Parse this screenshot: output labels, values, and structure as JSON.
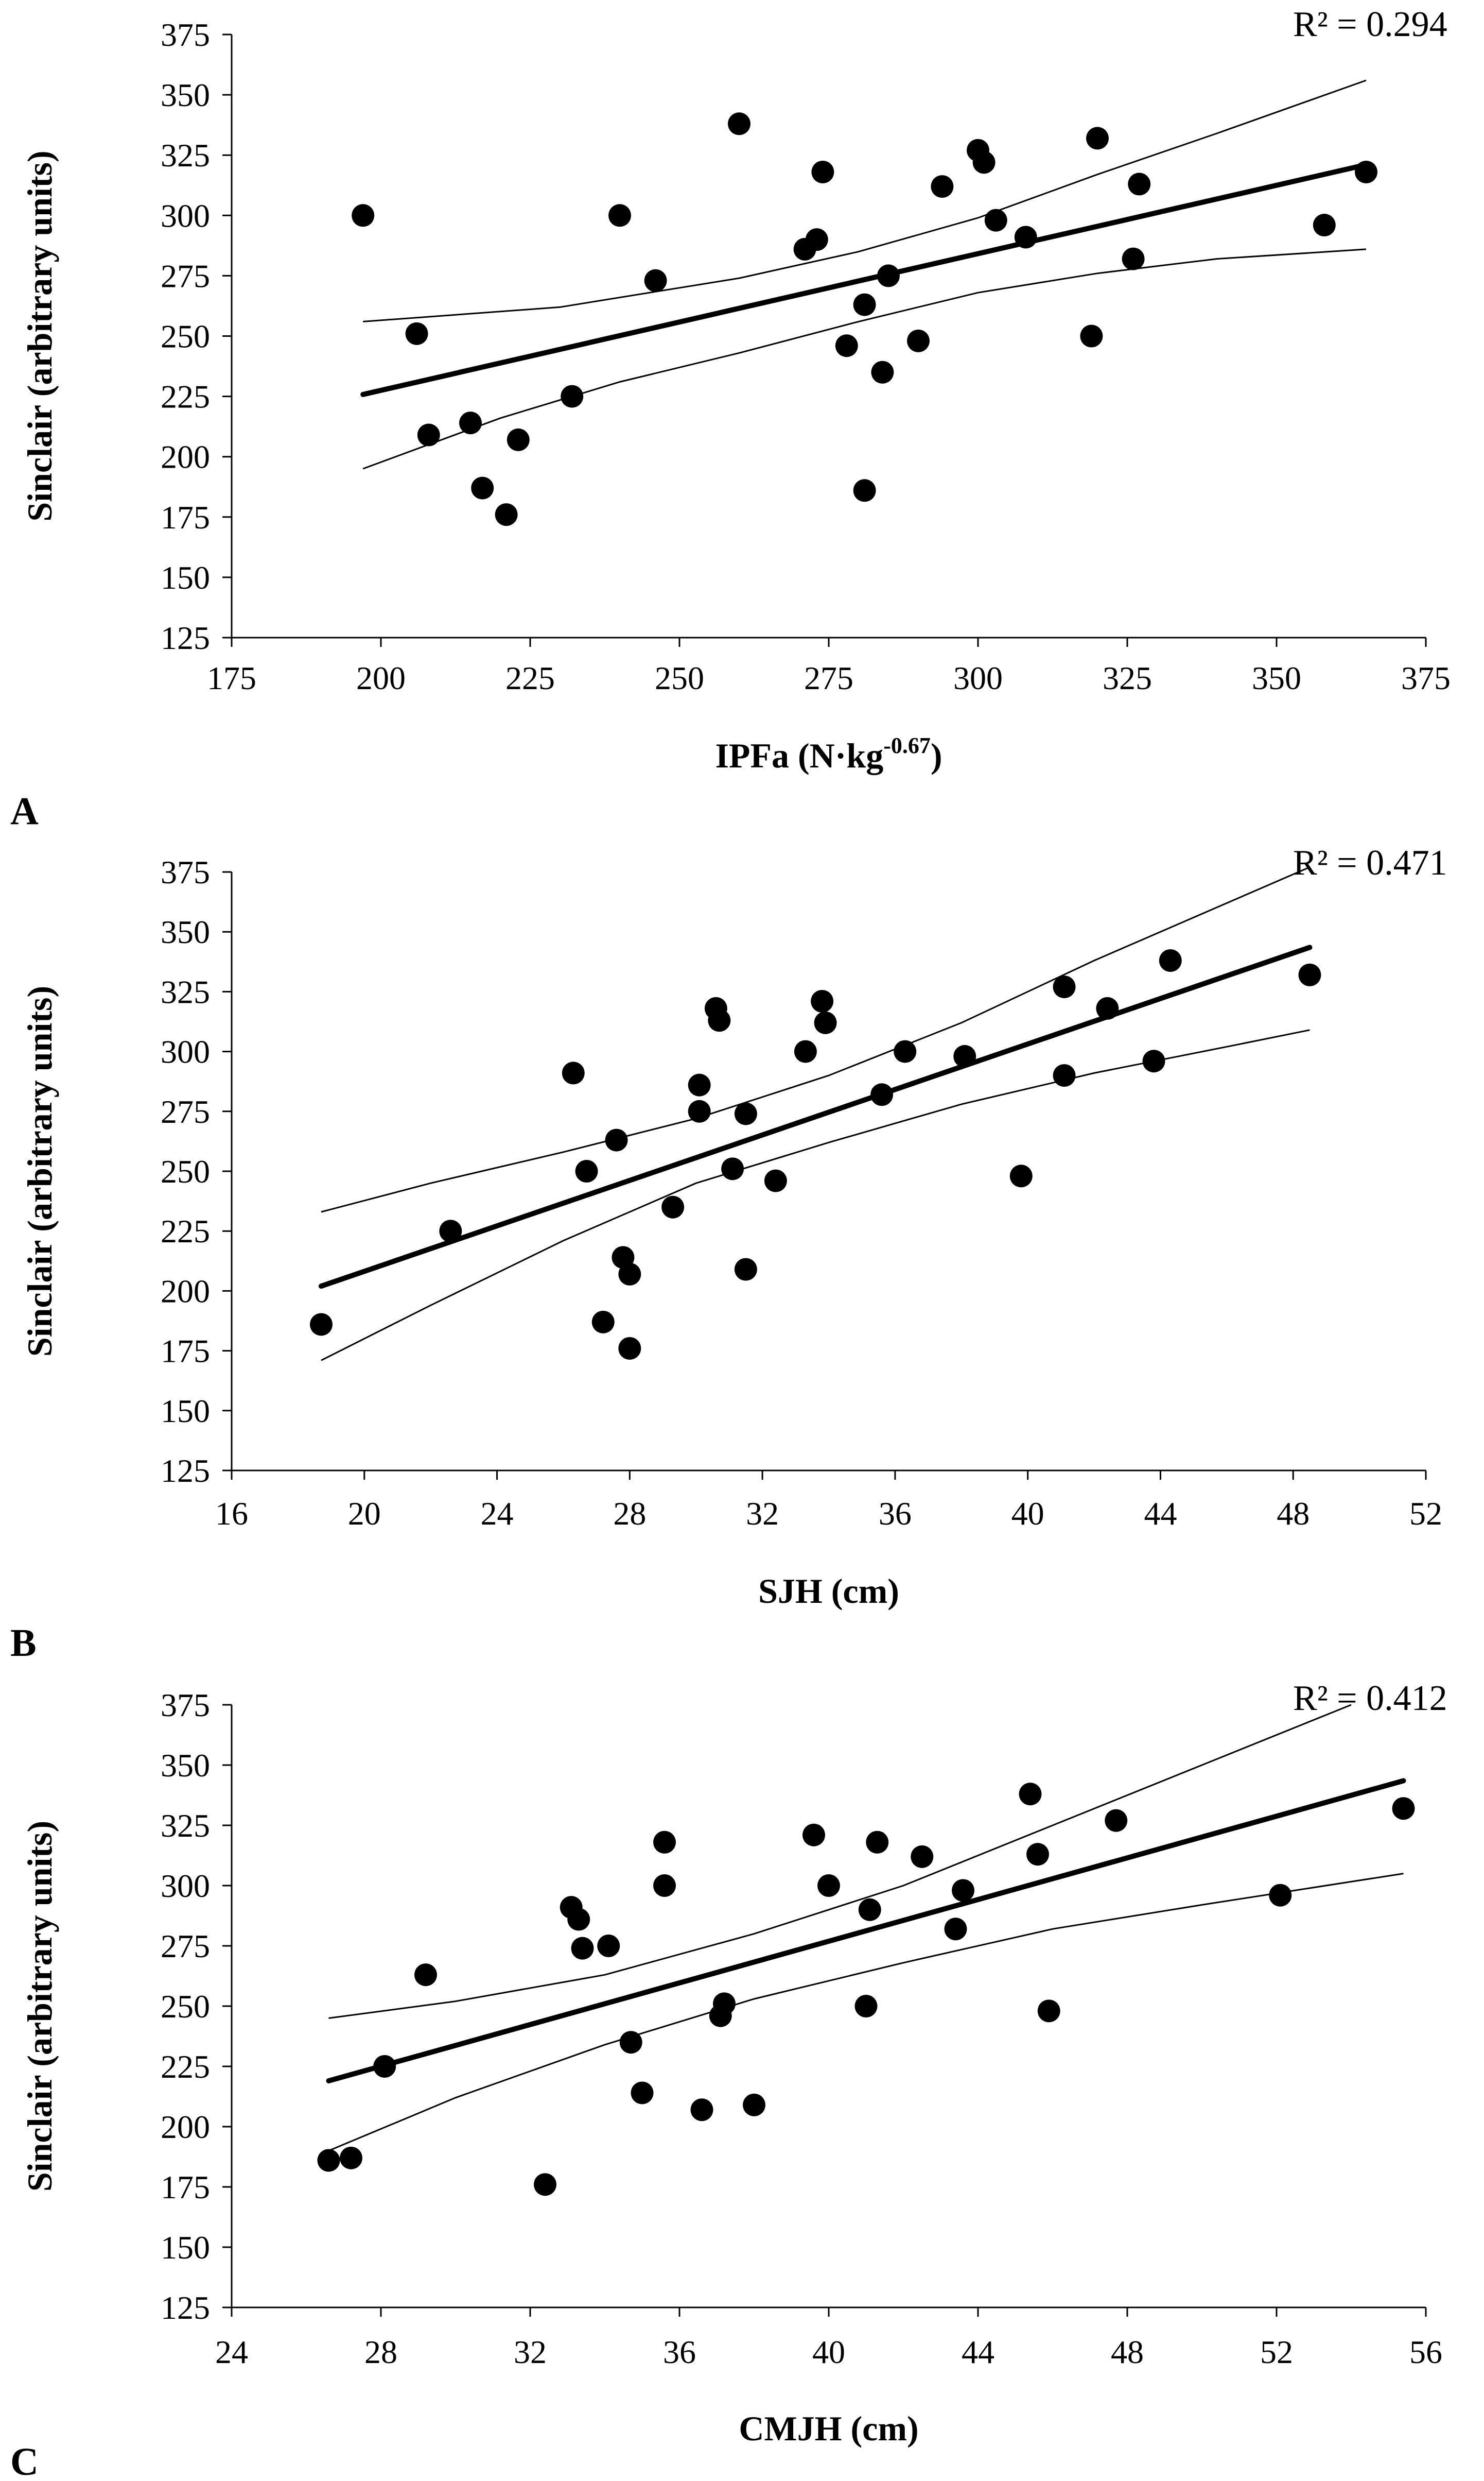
{
  "colors": {
    "marker": "#000000",
    "line": "#000000",
    "background": "#ffffff"
  },
  "chart_data": [
    {
      "type": "scatter",
      "panel_label": "A",
      "title": "",
      "xlabel": "IPFa (N·kg",
      "xlabel_superscript": "-0.67",
      "xlabel_close": ")",
      "ylabel": "Sinclair (arbitrary units)",
      "xlim": [
        175,
        375
      ],
      "ylim": [
        125,
        375
      ],
      "xticks": [
        175,
        200,
        225,
        250,
        275,
        300,
        325,
        350,
        375
      ],
      "yticks": [
        125,
        150,
        175,
        200,
        225,
        250,
        275,
        300,
        325,
        350,
        375
      ],
      "r2_label": "R² = 0.294",
      "points": [
        [
          197,
          300
        ],
        [
          206,
          251
        ],
        [
          208,
          209
        ],
        [
          215,
          214
        ],
        [
          217,
          187
        ],
        [
          221,
          176
        ],
        [
          223,
          207
        ],
        [
          232,
          225
        ],
        [
          240,
          300
        ],
        [
          246,
          273
        ],
        [
          260,
          338
        ],
        [
          271,
          286
        ],
        [
          273,
          290
        ],
        [
          274,
          318
        ],
        [
          278,
          246
        ],
        [
          281,
          263
        ],
        [
          281,
          186
        ],
        [
          284,
          235
        ],
        [
          285,
          275
        ],
        [
          290,
          248
        ],
        [
          294,
          312
        ],
        [
          300,
          327
        ],
        [
          301,
          322
        ],
        [
          303,
          298
        ],
        [
          308,
          291
        ],
        [
          319,
          250
        ],
        [
          320,
          332
        ],
        [
          326,
          282
        ],
        [
          327,
          313
        ],
        [
          358,
          296
        ],
        [
          365,
          318
        ]
      ],
      "trendline": [
        [
          197,
          225.8
        ],
        [
          365,
          321
        ]
      ],
      "ci_upper": [
        [
          197,
          256
        ],
        [
          230,
          262
        ],
        [
          260,
          274
        ],
        [
          280,
          285
        ],
        [
          300,
          299
        ],
        [
          320,
          317
        ],
        [
          340,
          334
        ],
        [
          365,
          356
        ]
      ],
      "ci_lower": [
        [
          197,
          195
        ],
        [
          220,
          216
        ],
        [
          240,
          231
        ],
        [
          260,
          243
        ],
        [
          280,
          256
        ],
        [
          300,
          268
        ],
        [
          320,
          276
        ],
        [
          340,
          282
        ],
        [
          365,
          286
        ]
      ]
    },
    {
      "type": "scatter",
      "panel_label": "B",
      "title": "",
      "xlabel": "SJH (cm)",
      "ylabel": "Sinclair (arbitrary units)",
      "xlim": [
        16,
        52
      ],
      "ylim": [
        125,
        375
      ],
      "xticks": [
        16,
        20,
        24,
        28,
        32,
        36,
        40,
        44,
        48,
        52
      ],
      "yticks": [
        125,
        150,
        175,
        200,
        225,
        250,
        275,
        300,
        325,
        350,
        375
      ],
      "r2_label": "R² = 0.471",
      "points": [
        [
          18.7,
          186
        ],
        [
          22.6,
          225
        ],
        [
          26.3,
          291
        ],
        [
          26.7,
          250
        ],
        [
          27.2,
          187
        ],
        [
          27.6,
          263
        ],
        [
          27.8,
          214
        ],
        [
          28.0,
          207
        ],
        [
          28.0,
          176
        ],
        [
          29.3,
          235
        ],
        [
          30.1,
          286
        ],
        [
          30.1,
          275
        ],
        [
          30.6,
          318
        ],
        [
          30.7,
          313
        ],
        [
          31.1,
          251
        ],
        [
          31.5,
          274
        ],
        [
          31.5,
          209
        ],
        [
          32.4,
          246
        ],
        [
          33.3,
          300
        ],
        [
          33.8,
          321
        ],
        [
          33.9,
          312
        ],
        [
          35.6,
          282
        ],
        [
          36.3,
          300
        ],
        [
          38.1,
          298
        ],
        [
          39.8,
          248
        ],
        [
          41.1,
          327
        ],
        [
          41.1,
          290
        ],
        [
          42.4,
          318
        ],
        [
          43.8,
          296
        ],
        [
          44.3,
          338
        ],
        [
          48.5,
          332
        ]
      ],
      "trendline": [
        [
          18.7,
          202
        ],
        [
          48.5,
          343.5
        ]
      ],
      "ci_upper": [
        [
          18.7,
          233
        ],
        [
          22,
          245
        ],
        [
          26,
          258
        ],
        [
          30,
          272
        ],
        [
          34,
          290
        ],
        [
          38,
          312
        ],
        [
          42,
          338
        ],
        [
          46,
          362
        ],
        [
          48.5,
          377
        ]
      ],
      "ci_lower": [
        [
          18.7,
          171
        ],
        [
          22,
          194
        ],
        [
          26,
          221
        ],
        [
          30,
          245
        ],
        [
          34,
          262
        ],
        [
          38,
          278
        ],
        [
          42,
          291
        ],
        [
          46,
          302
        ],
        [
          48.5,
          309
        ]
      ]
    },
    {
      "type": "scatter",
      "panel_label": "C",
      "title": "",
      "xlabel": "CMJH (cm)",
      "ylabel": "Sinclair (arbitrary units)",
      "xlim": [
        24,
        56
      ],
      "ylim": [
        125,
        375
      ],
      "xticks": [
        24,
        28,
        32,
        36,
        40,
        44,
        48,
        52,
        56
      ],
      "yticks": [
        125,
        150,
        175,
        200,
        225,
        250,
        275,
        300,
        325,
        350,
        375
      ],
      "r2_label": "R² = 0.412",
      "points": [
        [
          26.6,
          186
        ],
        [
          27.2,
          187
        ],
        [
          28.1,
          225
        ],
        [
          29.2,
          263
        ],
        [
          32.4,
          176
        ],
        [
          33.1,
          291
        ],
        [
          33.3,
          286
        ],
        [
          33.4,
          274
        ],
        [
          34.1,
          275
        ],
        [
          34.7,
          235
        ],
        [
          35.0,
          214
        ],
        [
          35.6,
          318
        ],
        [
          35.6,
          300
        ],
        [
          36.6,
          207
        ],
        [
          37.1,
          246
        ],
        [
          37.2,
          251
        ],
        [
          38.0,
          209
        ],
        [
          39.6,
          321
        ],
        [
          40.0,
          300
        ],
        [
          41.0,
          250
        ],
        [
          41.1,
          290
        ],
        [
          41.3,
          318
        ],
        [
          42.5,
          312
        ],
        [
          43.4,
          282
        ],
        [
          43.6,
          298
        ],
        [
          45.4,
          338
        ],
        [
          45.6,
          313
        ],
        [
          45.9,
          248
        ],
        [
          47.7,
          327
        ],
        [
          52.1,
          296
        ],
        [
          55.4,
          332
        ]
      ],
      "trendline": [
        [
          26.6,
          219
        ],
        [
          55.4,
          343.5
        ]
      ],
      "ci_upper": [
        [
          26.6,
          245
        ],
        [
          30,
          252
        ],
        [
          34,
          263
        ],
        [
          38,
          280
        ],
        [
          42,
          300
        ],
        [
          46,
          325
        ],
        [
          50,
          350
        ],
        [
          54,
          375
        ]
      ],
      "ci_lower": [
        [
          26.6,
          190
        ],
        [
          30,
          212
        ],
        [
          34,
          234
        ],
        [
          38,
          253
        ],
        [
          42,
          268
        ],
        [
          46,
          282
        ],
        [
          50,
          292
        ],
        [
          55.4,
          305
        ]
      ]
    }
  ]
}
